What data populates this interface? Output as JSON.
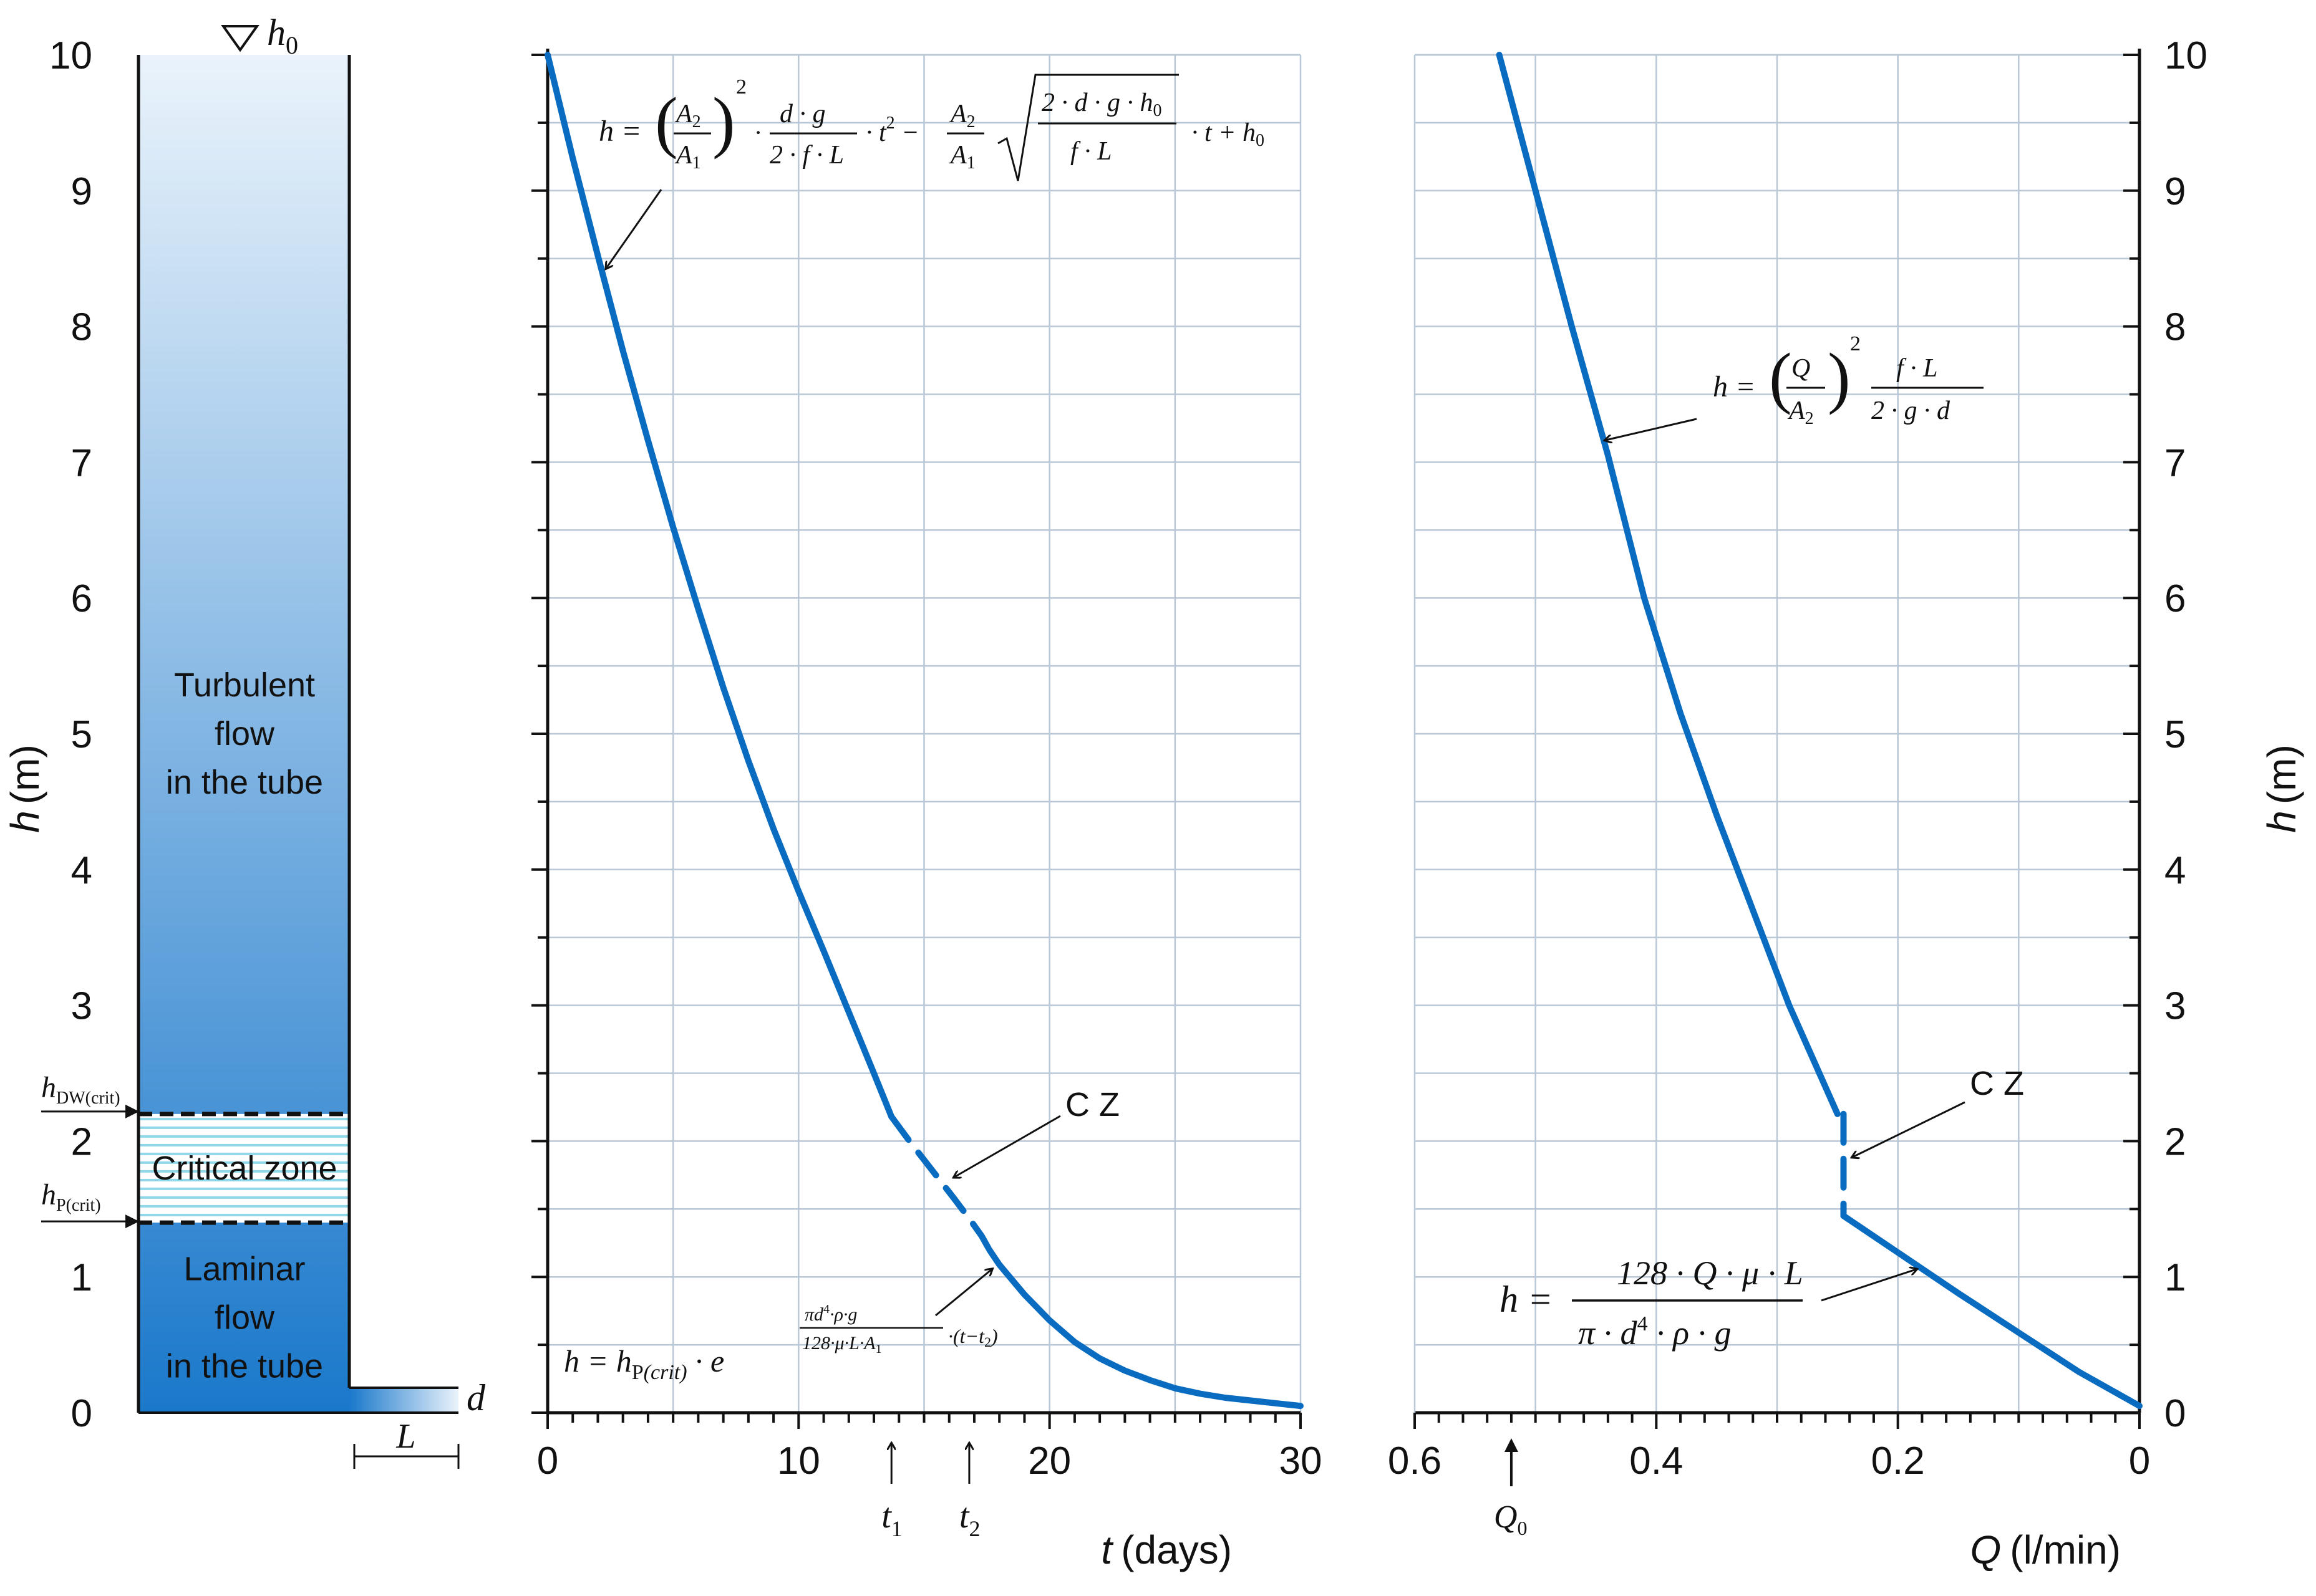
{
  "chart_data": [
    {
      "type": "diagram",
      "ylabel": "h (m)",
      "yticks": [
        0,
        1,
        2,
        3,
        4,
        5,
        6,
        7,
        8,
        9,
        10
      ],
      "ylim": [
        0,
        10
      ],
      "top_label": "h0",
      "zones": [
        {
          "name": "turbulent",
          "text_lines": [
            "Turbulent",
            "flow",
            "in the tube"
          ]
        },
        {
          "name": "critical",
          "text_lines": [
            "Critical zone"
          ]
        },
        {
          "name": "laminar",
          "text_lines": [
            "Laminar",
            "flow",
            "in the tube"
          ]
        }
      ],
      "h_dw_crit": 2.2,
      "h_p_crit": 1.4,
      "h_dw_crit_label": "hDW(crit)",
      "h_p_crit_label": "hP(crit)",
      "tube_labels": {
        "diameter": "d",
        "length": "L"
      },
      "colors": {
        "water_top": "#e6f1fb",
        "water_bottom": "#1f7fd0",
        "hatch": "#8fd8ea"
      }
    },
    {
      "type": "line",
      "xlabel": "t (days)",
      "xlim": [
        0,
        30
      ],
      "ylim": [
        0,
        10
      ],
      "xticks": [
        0,
        10,
        20,
        30
      ],
      "grid": true,
      "x_markers": [
        {
          "label": "t1",
          "x": 13.7
        },
        {
          "label": "t2",
          "x": 16.8
        }
      ],
      "segments": [
        {
          "style": "solid",
          "x": [
            0,
            1,
            2,
            3,
            4,
            5,
            6,
            7,
            8,
            9,
            10,
            11,
            12,
            13,
            13.7
          ],
          "y": [
            10,
            9.24,
            8.52,
            7.82,
            7.16,
            6.52,
            5.92,
            5.34,
            4.8,
            4.3,
            3.84,
            3.4,
            2.95,
            2.5,
            2.18
          ]
        },
        {
          "style": "dashed",
          "x": [
            13.7,
            14.5,
            15.3,
            16.1,
            16.8,
            17.3,
            17.6
          ],
          "y": [
            2.18,
            1.98,
            1.79,
            1.6,
            1.43,
            1.3,
            1.2
          ]
        },
        {
          "style": "solid",
          "x": [
            17.6,
            18,
            19,
            20,
            21,
            22,
            23,
            24,
            25,
            26,
            27,
            28,
            29,
            30
          ],
          "y": [
            1.2,
            1.09,
            0.87,
            0.68,
            0.52,
            0.4,
            0.31,
            0.24,
            0.18,
            0.14,
            0.11,
            0.09,
            0.07,
            0.05
          ]
        }
      ],
      "annotations": [
        {
          "name": "turbulent-equation",
          "text": "h = (A2/A1)^2 · d·g/(2·f·L) · t^2 − A2/A1 · √(2·d·g·h0/(f·L)) · t + h0",
          "x": 2.2,
          "y": 8.4
        },
        {
          "name": "critical-zone",
          "text": "C Z",
          "x": 16.3,
          "y": 1.75
        },
        {
          "name": "laminar-equation",
          "text": "h = hP(crit) · e^(π·d^4·ρ·g/(128·μ·L·A1)·(t−t2))",
          "x": 17.6,
          "y": 1.0
        }
      ],
      "colors": {
        "line": "#0a6cc1"
      }
    },
    {
      "type": "line",
      "xlabel": "Q (l/min)",
      "ylabel": "h (m)",
      "xlim": [
        0.6,
        0
      ],
      "ylim": [
        0,
        10
      ],
      "xticks": [
        0.6,
        0.4,
        0.2,
        0
      ],
      "yticks": [
        0,
        1,
        2,
        3,
        4,
        5,
        6,
        7,
        8,
        9,
        10
      ],
      "grid": true,
      "x_markers": [
        {
          "label": "Q0",
          "x": 0.52
        }
      ],
      "segments": [
        {
          "style": "solid",
          "x": [
            0.53,
            0.5,
            0.47,
            0.44,
            0.41,
            0.38,
            0.35,
            0.32,
            0.29,
            0.27,
            0.25
          ],
          "y": [
            10,
            9.0,
            8.0,
            7.05,
            6.0,
            5.15,
            4.4,
            3.7,
            3.0,
            2.6,
            2.2
          ]
        },
        {
          "style": "dashed",
          "x": [
            0.245,
            0.245
          ],
          "y": [
            2.2,
            1.45
          ]
        },
        {
          "style": "solid",
          "x": [
            0.245,
            0.2,
            0.15,
            0.1,
            0.05,
            0.0
          ],
          "y": [
            1.45,
            1.18,
            0.88,
            0.59,
            0.3,
            0.05
          ]
        }
      ],
      "annotations": [
        {
          "name": "turbulent-equation",
          "text": "h = (Q/A2)^2 · f·L/(2·g·d)",
          "x": 0.44,
          "y": 7.2
        },
        {
          "name": "critical-zone",
          "text": "C Z",
          "x": 0.24,
          "y": 1.9
        },
        {
          "name": "laminar-equation",
          "text": "h = 128·Q·μ·L/(π·d^4·ρ·g)",
          "x": 0.19,
          "y": 1.05
        }
      ],
      "colors": {
        "line": "#0a6cc1"
      }
    }
  ],
  "labels": {
    "left_ylabel": "h (m)",
    "right_ylabel": "h (m)",
    "middle_xlabel": "t (days)",
    "right_xlabel": "Q (l/min)",
    "cz_middle": "C Z",
    "cz_right": "C Z",
    "t1": "t",
    "t1_sub": "1",
    "t2": "t",
    "t2_sub": "2",
    "q0": "Q",
    "q0_sub": "0",
    "h0_main": "h",
    "h0_sub": "0",
    "hdw_main": "h",
    "hdw_sub": "DW(crit)",
    "hp_main": "h",
    "hp_sub": "P(crit)",
    "d": "d",
    "L": "L"
  }
}
